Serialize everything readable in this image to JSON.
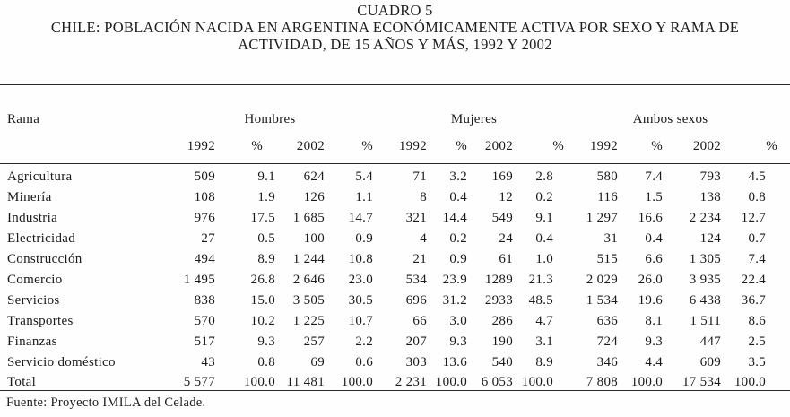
{
  "title": {
    "label": "CUADRO 5",
    "line1": "CHILE: POBLACIÓN NACIDA EN ARGENTINA ECONÓMICAMENTE ACTIVA POR SEXO Y RAMA DE",
    "line2": "ACTIVIDAD, DE 15 AÑOS Y MÁS, 1992 Y 2002"
  },
  "table": {
    "row_header": "Rama",
    "groups": [
      "Hombres",
      "Mujeres",
      "Ambos sexos"
    ],
    "subheaders": [
      "1992",
      "%",
      "2002",
      "%",
      "1992",
      "%",
      "2002",
      "%",
      "1992",
      "%",
      "2002",
      "%"
    ],
    "rows": [
      {
        "label": "Agricultura",
        "values": [
          "509",
          "9.1",
          "624",
          "5.4",
          "71",
          "3.2",
          "169",
          "2.8",
          "580",
          "7.4",
          "793",
          "4.5"
        ]
      },
      {
        "label": "Minería",
        "values": [
          "108",
          "1.9",
          "126",
          "1.1",
          "8",
          "0.4",
          "12",
          "0.2",
          "116",
          "1.5",
          "138",
          "0.8"
        ]
      },
      {
        "label": "Industria",
        "values": [
          "976",
          "17.5",
          "1 685",
          "14.7",
          "321",
          "14.4",
          "549",
          "9.1",
          "1 297",
          "16.6",
          "2 234",
          "12.7"
        ]
      },
      {
        "label": "Electricidad",
        "values": [
          "27",
          "0.5",
          "100",
          "0.9",
          "4",
          "0.2",
          "24",
          "0.4",
          "31",
          "0.4",
          "124",
          "0.7"
        ]
      },
      {
        "label": "Construcción",
        "values": [
          "494",
          "8.9",
          "1 244",
          "10.8",
          "21",
          "0.9",
          "61",
          "1.0",
          "515",
          "6.6",
          "1 305",
          "7.4"
        ]
      },
      {
        "label": "Comercio",
        "values": [
          "1 495",
          "26.8",
          "2 646",
          "23.0",
          "534",
          "23.9",
          "1289",
          "21.3",
          "2 029",
          "26.0",
          "3 935",
          "22.4"
        ]
      },
      {
        "label": "Servicios",
        "values": [
          "838",
          "15.0",
          "3 505",
          "30.5",
          "696",
          "31.2",
          "2933",
          "48.5",
          "1 534",
          "19.6",
          "6 438",
          "36.7"
        ]
      },
      {
        "label": "Transportes",
        "values": [
          "570",
          "10.2",
          "1 225",
          "10.7",
          "66",
          "3.0",
          "286",
          "4.7",
          "636",
          "8.1",
          "1 511",
          "8.6"
        ]
      },
      {
        "label": "Finanzas",
        "values": [
          "517",
          "9.3",
          "257",
          "2.2",
          "207",
          "9.3",
          "190",
          "3.1",
          "724",
          "9.3",
          "447",
          "2.5"
        ]
      },
      {
        "label": "Servicio doméstico",
        "values": [
          "43",
          "0.8",
          "69",
          "0.6",
          "303",
          "13.6",
          "540",
          "8.9",
          "346",
          "4.4",
          "609",
          "3.5"
        ]
      },
      {
        "label": "Total",
        "values": [
          "5 577",
          "100.0",
          "11 481",
          "100.0",
          "2 231",
          "100.0",
          "6 053",
          "100.0",
          "7 808",
          "100.0",
          "17 534",
          "100.0"
        ]
      }
    ]
  },
  "source": "Fuente: Proyecto IMILA del Celade."
}
